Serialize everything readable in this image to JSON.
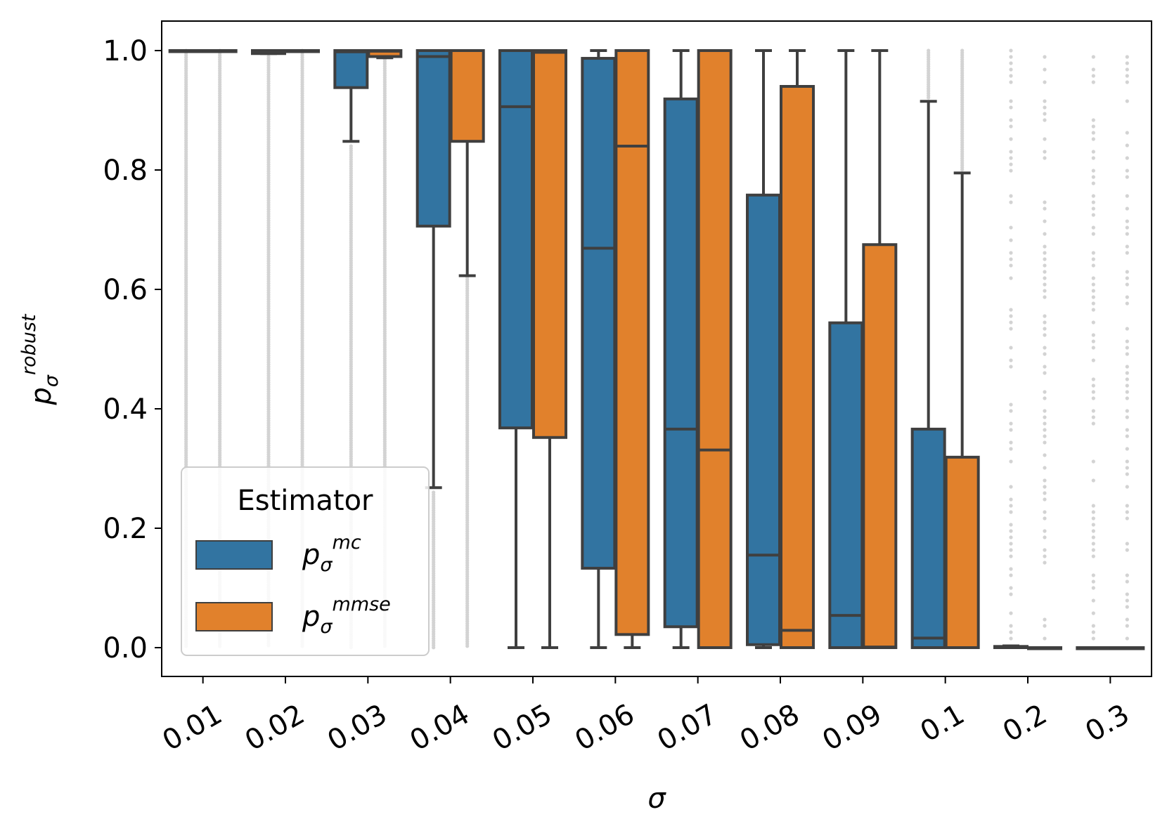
{
  "chart_data": {
    "type": "box",
    "xlabel": "σ",
    "ylabel": {
      "base": "p",
      "sub": "σ",
      "sup": "robust"
    },
    "ylim": [
      -0.05,
      1.05
    ],
    "yticks": [
      "0.0",
      "0.2",
      "0.4",
      "0.6",
      "0.8",
      "1.0"
    ],
    "categories": [
      "0.01",
      "0.02",
      "0.03",
      "0.04",
      "0.05",
      "0.06",
      "0.07",
      "0.08",
      "0.09",
      "0.1",
      "0.2",
      "0.3"
    ],
    "legend": {
      "title": "Estimator",
      "placement": "lower-left",
      "entries": [
        {
          "base": "p",
          "sub": "σ",
          "sup": "mc"
        },
        {
          "base": "p",
          "sub": "σ",
          "sup": "mmse"
        }
      ]
    },
    "series": [
      {
        "name": "p_σ^mc",
        "color": "#3274a1",
        "boxes": [
          {
            "q1": 1.0,
            "median": 1.0,
            "q3": 1.0,
            "whislo": 1.0,
            "whishi": 1.0,
            "outliers_range": [
              0.0,
              1.0
            ]
          },
          {
            "q1": 0.995,
            "median": 0.998,
            "q3": 1.0,
            "whislo": 0.995,
            "whishi": 1.0,
            "outliers_range": [
              0.0,
              0.99
            ]
          },
          {
            "q1": 0.938,
            "median": 0.998,
            "q3": 1.0,
            "whislo": 0.848,
            "whishi": 1.0,
            "outliers_range": [
              0.0,
              0.84
            ]
          },
          {
            "q1": 0.706,
            "median": 0.99,
            "q3": 1.0,
            "whislo": 0.268,
            "whishi": 1.0,
            "outliers_range": [
              0.0,
              0.26
            ]
          },
          {
            "q1": 0.368,
            "median": 0.906,
            "q3": 1.0,
            "whislo": 0.0,
            "whishi": 1.0
          },
          {
            "q1": 0.133,
            "median": 0.669,
            "q3": 0.987,
            "whislo": 0.0,
            "whishi": 1.0
          },
          {
            "q1": 0.035,
            "median": 0.366,
            "q3": 0.919,
            "whislo": 0.0,
            "whishi": 1.0
          },
          {
            "q1": 0.005,
            "median": 0.155,
            "q3": 0.758,
            "whislo": 0.0,
            "whishi": 1.0
          },
          {
            "q1": 0.0,
            "median": 0.054,
            "q3": 0.544,
            "whislo": 0.0,
            "whishi": 1.0
          },
          {
            "q1": 0.0,
            "median": 0.016,
            "q3": 0.366,
            "whislo": 0.0,
            "whishi": 0.915,
            "outliers_range": [
              0.92,
              1.0
            ]
          },
          {
            "q1": 0.0,
            "median": 0.0,
            "q3": 0.002,
            "whislo": 0.0,
            "whishi": 0.003,
            "outliers_range": [
              0.005,
              1.0
            ]
          },
          {
            "q1": 0.0,
            "median": 0.0,
            "q3": 0.0,
            "whislo": 0.0,
            "whishi": 0.0,
            "outliers_range": [
              0.005,
              1.0
            ]
          }
        ]
      },
      {
        "name": "p_σ^mmse",
        "color": "#e1812c",
        "boxes": [
          {
            "q1": 1.0,
            "median": 1.0,
            "q3": 1.0,
            "whislo": 1.0,
            "whishi": 1.0,
            "outliers_range": [
              0.0,
              1.0
            ]
          },
          {
            "q1": 1.0,
            "median": 1.0,
            "q3": 1.0,
            "whislo": 1.0,
            "whishi": 1.0,
            "outliers_range": [
              0.0,
              1.0
            ]
          },
          {
            "q1": 0.99,
            "median": 0.999,
            "q3": 1.0,
            "whislo": 0.988,
            "whishi": 1.0,
            "outliers_range": [
              0.0,
              0.985
            ]
          },
          {
            "q1": 0.848,
            "median": 1.0,
            "q3": 1.0,
            "whislo": 0.623,
            "whishi": 1.0,
            "outliers_range": [
              0.0,
              0.62
            ]
          },
          {
            "q1": 0.352,
            "median": 0.997,
            "q3": 1.0,
            "whislo": 0.0,
            "whishi": 1.0
          },
          {
            "q1": 0.022,
            "median": 0.84,
            "q3": 1.0,
            "whislo": 0.0,
            "whishi": 1.0
          },
          {
            "q1": 0.0,
            "median": 0.331,
            "q3": 1.0,
            "whislo": 0.0,
            "whishi": 1.0
          },
          {
            "q1": 0.0,
            "median": 0.029,
            "q3": 0.94,
            "whislo": 0.0,
            "whishi": 1.0
          },
          {
            "q1": 0.0,
            "median": 0.001,
            "q3": 0.675,
            "whislo": 0.0,
            "whishi": 1.0
          },
          {
            "q1": 0.0,
            "median": 0.0,
            "q3": 0.319,
            "whislo": 0.0,
            "whishi": 0.795,
            "outliers_range": [
              0.8,
              1.0
            ]
          },
          {
            "q1": 0.0,
            "median": 0.0,
            "q3": 0.0,
            "whislo": 0.0,
            "whishi": 0.0,
            "outliers_range": [
              0.005,
              1.0
            ]
          },
          {
            "q1": 0.0,
            "median": 0.0,
            "q3": 0.0,
            "whislo": 0.0,
            "whishi": 0.0,
            "outliers_range": [
              0.005,
              1.0
            ]
          }
        ]
      }
    ]
  }
}
